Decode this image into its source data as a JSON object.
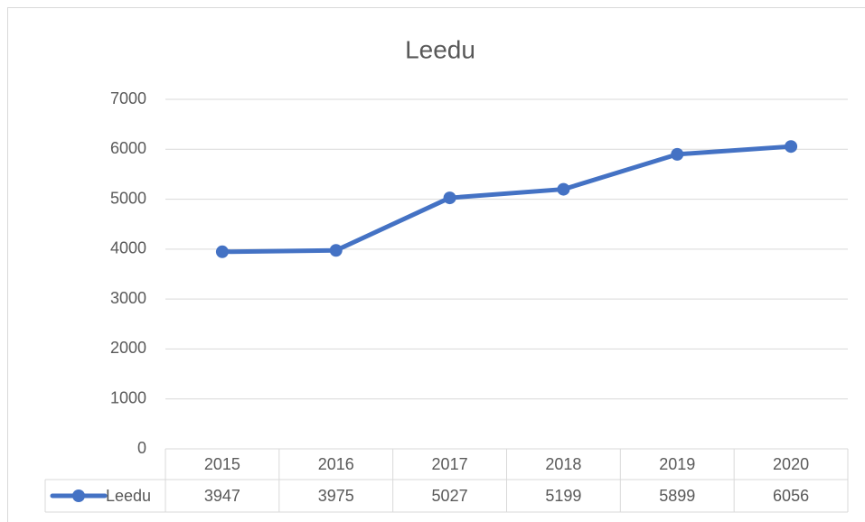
{
  "chart_data": {
    "type": "line",
    "title": "Leedu",
    "categories": [
      "2015",
      "2016",
      "2017",
      "2018",
      "2019",
      "2020"
    ],
    "series": [
      {
        "name": "Leedu",
        "color": "#4472c4",
        "values": [
          3947,
          3975,
          5027,
          5199,
          5899,
          6056
        ]
      }
    ],
    "ylim": [
      0,
      7000
    ],
    "yticks": [
      0,
      1000,
      2000,
      3000,
      4000,
      5000,
      6000,
      7000
    ],
    "grid": true,
    "legend": "bottom",
    "data_table": true
  }
}
